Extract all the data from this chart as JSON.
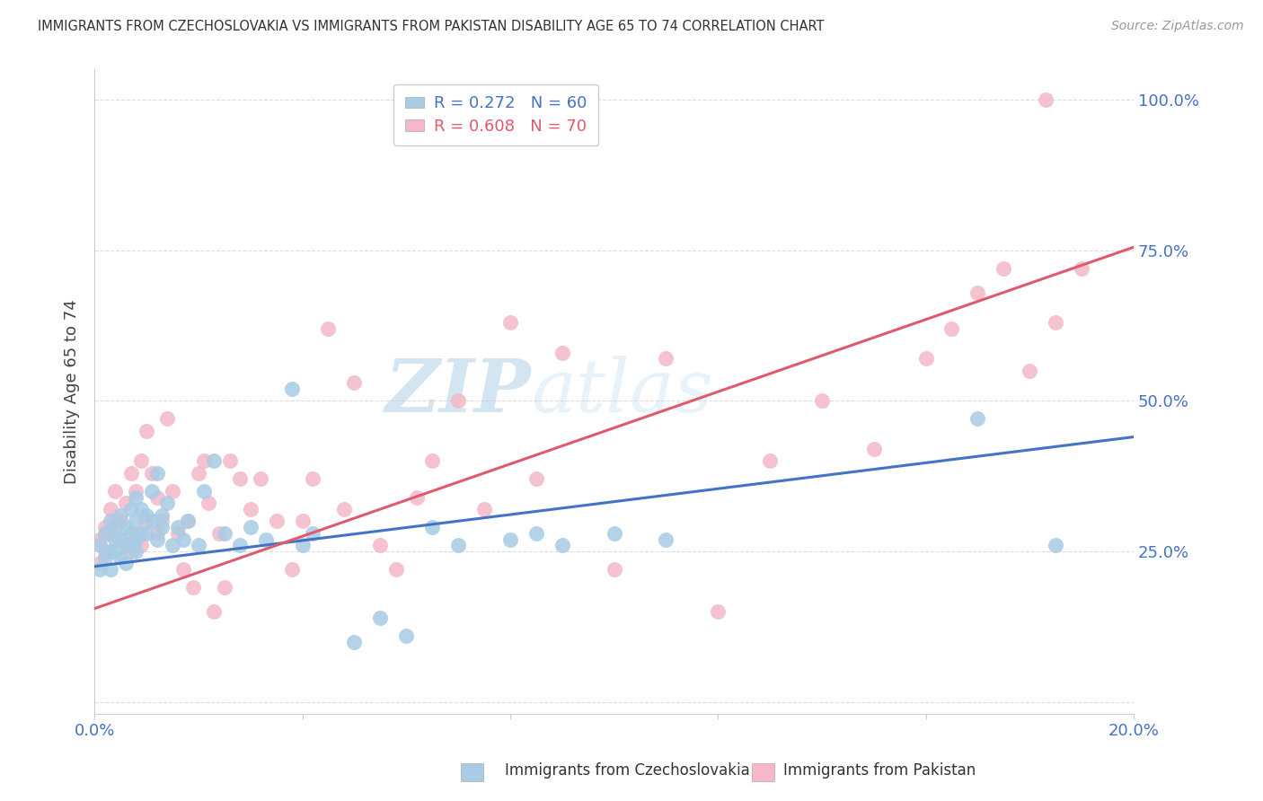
{
  "title": "IMMIGRANTS FROM CZECHOSLOVAKIA VS IMMIGRANTS FROM PAKISTAN DISABILITY AGE 65 TO 74 CORRELATION CHART",
  "source": "Source: ZipAtlas.com",
  "ylabel_label": "Disability Age 65 to 74",
  "xlim": [
    0.0,
    0.2
  ],
  "ylim": [
    -0.02,
    1.05
  ],
  "x_ticks": [
    0.0,
    0.04,
    0.08,
    0.12,
    0.16,
    0.2
  ],
  "y_ticks": [
    0.0,
    0.25,
    0.5,
    0.75,
    1.0
  ],
  "x_tick_labels_bottom": [
    "0.0%",
    "",
    "",
    "",
    "",
    "20.0%"
  ],
  "y_tick_labels_right": [
    "",
    "25.0%",
    "50.0%",
    "75.0%",
    "100.0%"
  ],
  "legend1_label": "R = 0.272   N = 60",
  "legend2_label": "R = 0.608   N = 70",
  "color_blue": "#a8cce4",
  "color_pink": "#f4b8c8",
  "line_color_blue": "#4472c4",
  "line_color_pink": "#e05a6e",
  "tick_color": "#4472c4",
  "watermark_zip": "ZIP",
  "watermark_atlas": "atlas",
  "blue_scatter_x": [
    0.001,
    0.001,
    0.002,
    0.002,
    0.003,
    0.003,
    0.003,
    0.004,
    0.004,
    0.004,
    0.005,
    0.005,
    0.005,
    0.006,
    0.006,
    0.006,
    0.007,
    0.007,
    0.007,
    0.008,
    0.008,
    0.008,
    0.008,
    0.009,
    0.009,
    0.01,
    0.01,
    0.011,
    0.011,
    0.012,
    0.012,
    0.013,
    0.013,
    0.014,
    0.015,
    0.016,
    0.017,
    0.018,
    0.02,
    0.021,
    0.023,
    0.025,
    0.028,
    0.03,
    0.033,
    0.038,
    0.04,
    0.042,
    0.05,
    0.055,
    0.06,
    0.065,
    0.07,
    0.08,
    0.085,
    0.09,
    0.1,
    0.11,
    0.17,
    0.185
  ],
  "blue_scatter_y": [
    0.22,
    0.26,
    0.24,
    0.28,
    0.25,
    0.3,
    0.22,
    0.27,
    0.25,
    0.29,
    0.31,
    0.24,
    0.27,
    0.26,
    0.29,
    0.23,
    0.28,
    0.32,
    0.26,
    0.3,
    0.27,
    0.34,
    0.25,
    0.32,
    0.28,
    0.31,
    0.28,
    0.35,
    0.3,
    0.27,
    0.38,
    0.29,
    0.31,
    0.33,
    0.26,
    0.29,
    0.27,
    0.3,
    0.26,
    0.35,
    0.4,
    0.28,
    0.26,
    0.29,
    0.27,
    0.52,
    0.26,
    0.28,
    0.1,
    0.14,
    0.11,
    0.29,
    0.26,
    0.27,
    0.28,
    0.26,
    0.28,
    0.27,
    0.47,
    0.26
  ],
  "pink_scatter_x": [
    0.001,
    0.001,
    0.002,
    0.002,
    0.003,
    0.003,
    0.004,
    0.004,
    0.005,
    0.005,
    0.006,
    0.006,
    0.007,
    0.007,
    0.008,
    0.008,
    0.009,
    0.009,
    0.01,
    0.01,
    0.011,
    0.012,
    0.012,
    0.013,
    0.014,
    0.015,
    0.016,
    0.017,
    0.018,
    0.019,
    0.02,
    0.021,
    0.022,
    0.023,
    0.024,
    0.025,
    0.026,
    0.028,
    0.03,
    0.032,
    0.035,
    0.038,
    0.04,
    0.042,
    0.045,
    0.048,
    0.05,
    0.055,
    0.058,
    0.062,
    0.065,
    0.07,
    0.075,
    0.08,
    0.085,
    0.09,
    0.1,
    0.11,
    0.12,
    0.13,
    0.14,
    0.15,
    0.16,
    0.165,
    0.17,
    0.175,
    0.18,
    0.183,
    0.185,
    0.19
  ],
  "pink_scatter_y": [
    0.27,
    0.23,
    0.29,
    0.25,
    0.32,
    0.28,
    0.3,
    0.35,
    0.27,
    0.3,
    0.26,
    0.33,
    0.38,
    0.25,
    0.35,
    0.28,
    0.4,
    0.26,
    0.3,
    0.45,
    0.38,
    0.28,
    0.34,
    0.3,
    0.47,
    0.35,
    0.28,
    0.22,
    0.3,
    0.19,
    0.38,
    0.4,
    0.33,
    0.15,
    0.28,
    0.19,
    0.4,
    0.37,
    0.32,
    0.37,
    0.3,
    0.22,
    0.3,
    0.37,
    0.62,
    0.32,
    0.53,
    0.26,
    0.22,
    0.34,
    0.4,
    0.5,
    0.32,
    0.63,
    0.37,
    0.58,
    0.22,
    0.57,
    0.15,
    0.4,
    0.5,
    0.42,
    0.57,
    0.62,
    0.68,
    0.72,
    0.55,
    1.0,
    0.63,
    0.72
  ],
  "blue_line_x": [
    0.0,
    0.2
  ],
  "blue_line_y": [
    0.225,
    0.44
  ],
  "pink_line_x": [
    0.0,
    0.2
  ],
  "pink_line_y": [
    0.155,
    0.755
  ],
  "grid_color": "#dddddd",
  "spine_color": "#cccccc"
}
